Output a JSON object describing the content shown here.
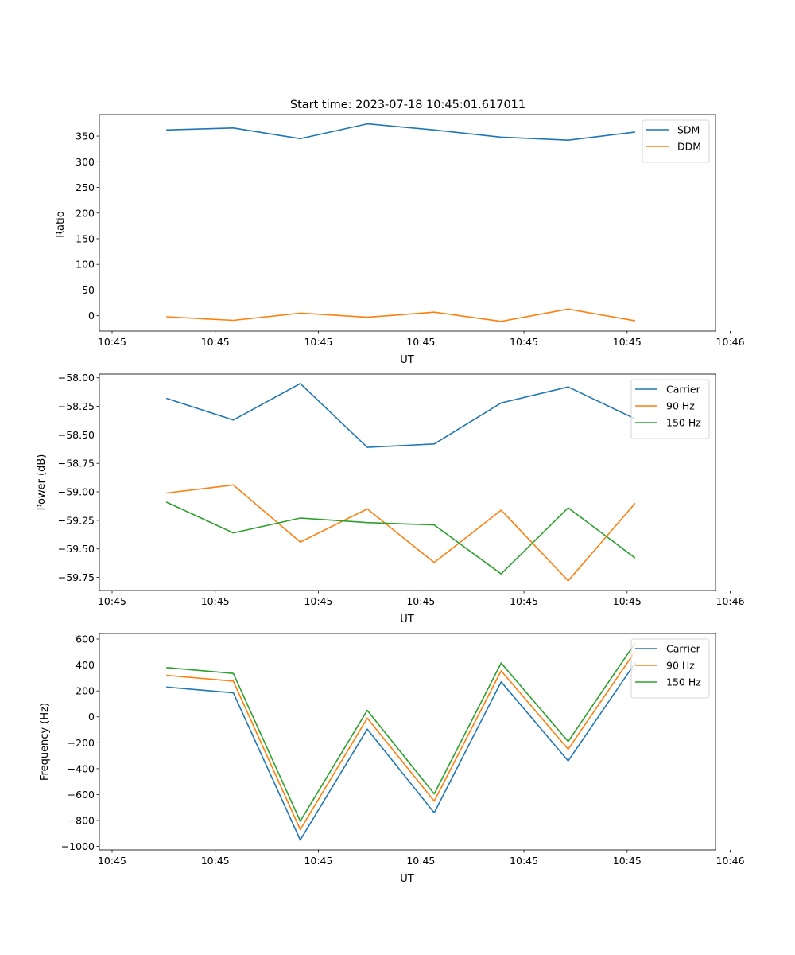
{
  "figure": {
    "title": "Start time: 2023-07-18 10:45:01.617011"
  },
  "colors": {
    "blue": "#1f77b4",
    "orange": "#ff7f0e",
    "green": "#2ca02c"
  },
  "chart_data": [
    {
      "type": "line",
      "id": "ratio",
      "xlabel": "UT",
      "ylabel": "Ratio",
      "x": [
        1,
        2,
        3,
        4,
        5,
        6,
        7,
        8
      ],
      "xlim": [
        0,
        9.2
      ],
      "xticks": [
        0.19,
        1.73,
        3.27,
        4.8,
        6.34,
        7.88,
        9.42
      ],
      "xtick_labels": [
        "10:45",
        "10:45",
        "10:45",
        "10:45",
        "10:45",
        "10:45",
        "10:46"
      ],
      "ylim": [
        -30,
        392
      ],
      "yticks": [
        0,
        50,
        100,
        150,
        200,
        250,
        300,
        350
      ],
      "ytick_labels": [
        "0",
        "50",
        "100",
        "150",
        "200",
        "250",
        "300",
        "350"
      ],
      "legend": "top-right",
      "series": [
        {
          "name": "SDM",
          "color": "#1f77b4",
          "values": [
            362,
            366,
            345,
            374,
            362,
            348,
            342,
            358
          ]
        },
        {
          "name": "DDM",
          "color": "#ff7f0e",
          "values": [
            -2,
            -9,
            5,
            -3,
            7,
            -11,
            13,
            -10
          ]
        }
      ]
    },
    {
      "type": "line",
      "id": "power",
      "xlabel": "UT",
      "ylabel": "Power (dB)",
      "x": [
        1,
        2,
        3,
        4,
        5,
        6,
        7,
        8
      ],
      "xlim": [
        0,
        9.2
      ],
      "xticks": [
        0.19,
        1.73,
        3.27,
        4.8,
        6.34,
        7.88,
        9.42
      ],
      "xtick_labels": [
        "10:45",
        "10:45",
        "10:45",
        "10:45",
        "10:45",
        "10:45",
        "10:46"
      ],
      "ylim": [
        -59.865,
        -57.967
      ],
      "yticks": [
        -58.0,
        -58.25,
        -58.5,
        -58.75,
        -59.0,
        -59.25,
        -59.5,
        -59.75
      ],
      "ytick_labels": [
        "−58.00",
        "−58.25",
        "−58.50",
        "−58.75",
        "−59.00",
        "−59.25",
        "−59.50",
        "−59.75"
      ],
      "legend": "top-right",
      "series": [
        {
          "name": "Carrier",
          "color": "#1f77b4",
          "values": [
            -58.18,
            -58.37,
            -58.05,
            -58.61,
            -58.58,
            -58.22,
            -58.08,
            -58.36
          ]
        },
        {
          "name": "90 Hz",
          "color": "#ff7f0e",
          "values": [
            -59.01,
            -58.94,
            -59.44,
            -59.15,
            -59.62,
            -59.16,
            -59.78,
            -59.1
          ]
        },
        {
          "name": "150 Hz",
          "color": "#2ca02c",
          "values": [
            -59.09,
            -59.36,
            -59.23,
            -59.27,
            -59.29,
            -59.72,
            -59.14,
            -59.58
          ]
        }
      ]
    },
    {
      "type": "line",
      "id": "frequency",
      "xlabel": "UT",
      "ylabel": "Frequency (Hz)",
      "x": [
        1,
        2,
        3,
        4,
        5,
        6,
        7,
        8
      ],
      "xlim": [
        0,
        9.2
      ],
      "xticks": [
        0.19,
        1.73,
        3.27,
        4.8,
        6.34,
        7.88,
        9.42
      ],
      "xtick_labels": [
        "10:45",
        "10:45",
        "10:45",
        "10:45",
        "10:45",
        "10:45",
        "10:46"
      ],
      "ylim": [
        -1027,
        643
      ],
      "yticks": [
        600,
        400,
        200,
        0,
        -200,
        -400,
        -600,
        -800,
        -1000
      ],
      "ytick_labels": [
        "600",
        "400",
        "200",
        "0",
        "−200",
        "−400",
        "−600",
        "−800",
        "−1000"
      ],
      "legend": "top-right",
      "series": [
        {
          "name": "Carrier",
          "color": "#1f77b4",
          "values": [
            230,
            185,
            -950,
            -95,
            -740,
            270,
            -340,
            415
          ]
        },
        {
          "name": "90 Hz",
          "color": "#ff7f0e",
          "values": [
            320,
            275,
            -870,
            -10,
            -650,
            355,
            -250,
            505
          ]
        },
        {
          "name": "150 Hz",
          "color": "#2ca02c",
          "values": [
            380,
            335,
            -805,
            50,
            -595,
            415,
            -190,
            570
          ]
        }
      ]
    }
  ]
}
